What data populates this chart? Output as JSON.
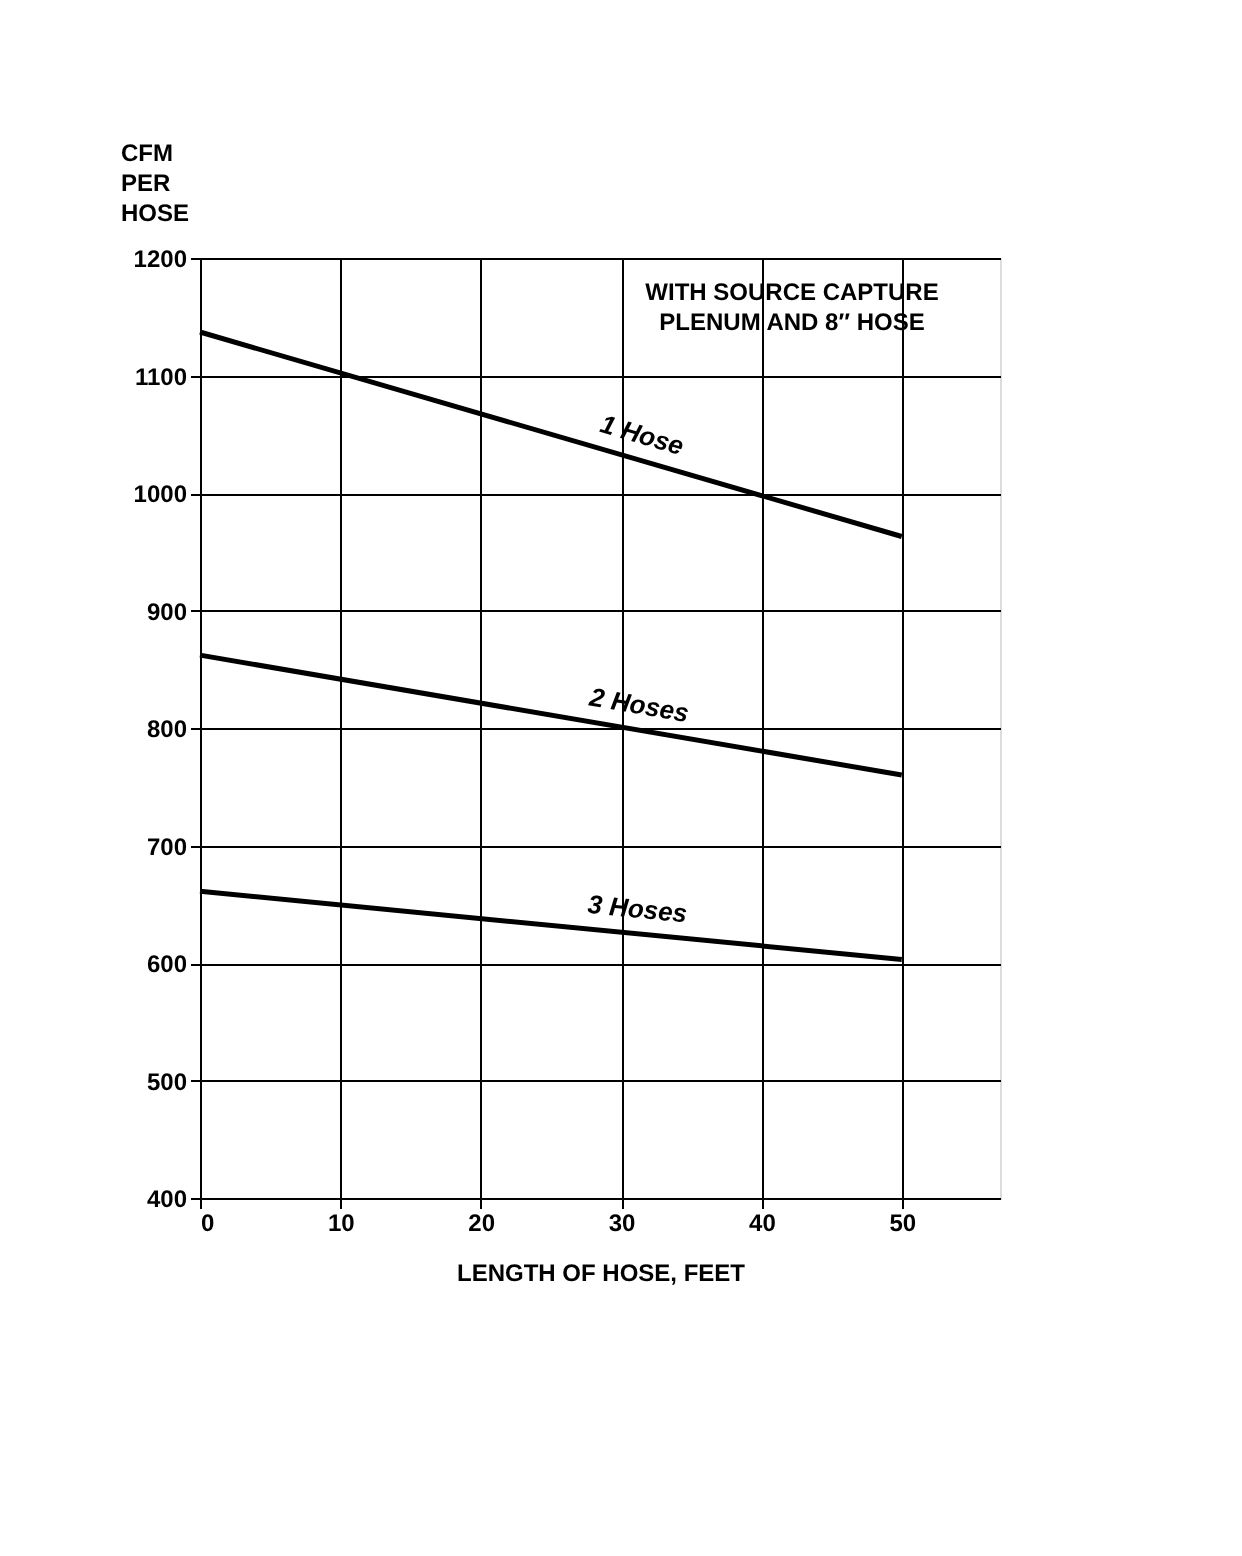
{
  "chart_data": {
    "type": "line",
    "xlabel": "LENGTH OF HOSE, FEET",
    "ylabel": "CFM PER HOSE",
    "annotations": [
      "WITH SOURCE CAPTURE PLENUM AND 8″ HOSE"
    ],
    "series": [
      {
        "name": "1 Hose",
        "color": "#000000",
        "values": [
          1137,
          963
        ]
      },
      {
        "name": "2 Hoses",
        "color": "#000000",
        "values": [
          862,
          760
        ]
      },
      {
        "name": "3 Hoses",
        "color": "#000000",
        "values": [
          661,
          603
        ]
      }
    ],
    "x": [
      0,
      50
    ],
    "xlim": [
      0,
      57
    ],
    "xticks": [
      0,
      10,
      20,
      30,
      40,
      50
    ],
    "ylim": [
      400,
      1200
    ],
    "yticks": [
      400,
      500,
      600,
      700,
      800,
      900,
      1000,
      1100,
      1200
    ],
    "grid": true,
    "marker": "none",
    "line_style": "solid"
  }
}
